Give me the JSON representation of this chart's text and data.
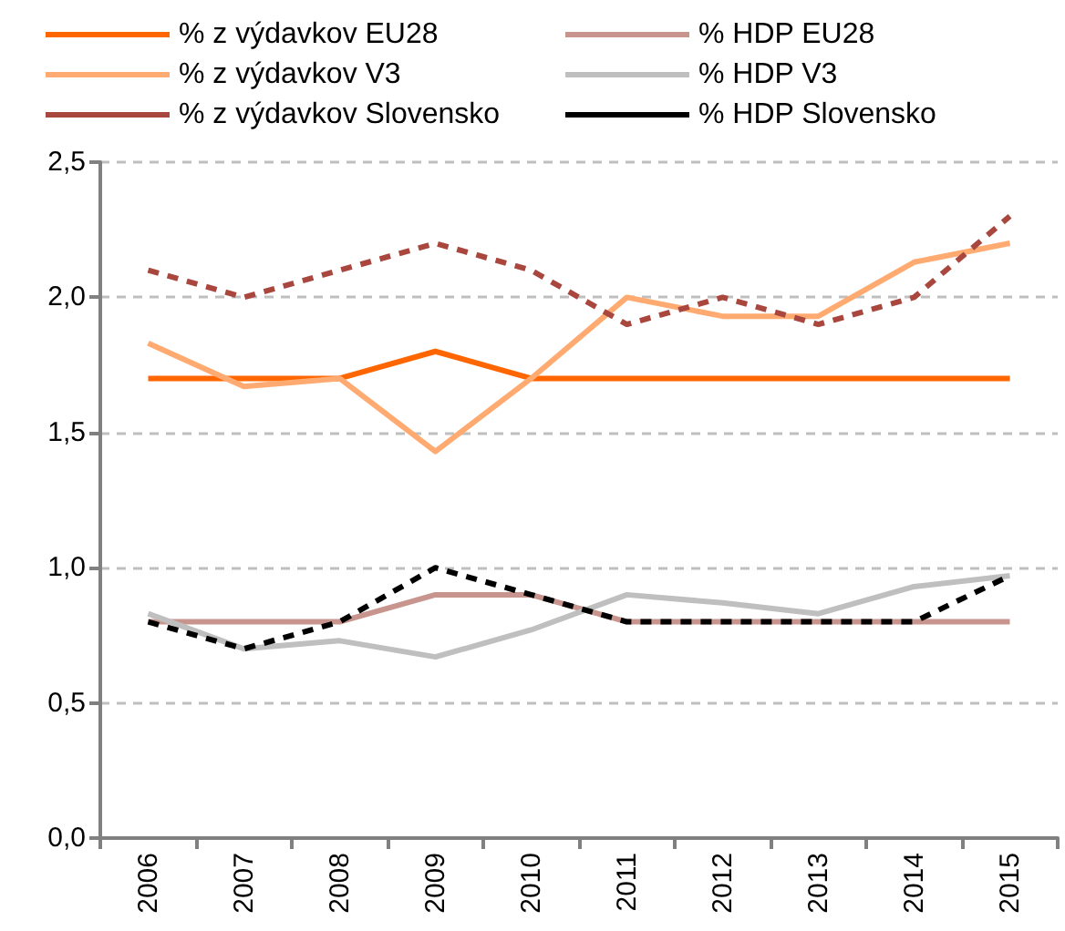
{
  "chart_data": {
    "type": "line",
    "categories": [
      "2006",
      "2007",
      "2008",
      "2009",
      "2010",
      "2011",
      "2012",
      "2013",
      "2014",
      "2015"
    ],
    "series": [
      {
        "name": "% z výdavkov EU28",
        "color": "#ff6600",
        "line_style": "solid",
        "values": [
          1.7,
          1.7,
          1.7,
          1.8,
          1.7,
          1.7,
          1.7,
          1.7,
          1.7,
          1.7
        ]
      },
      {
        "name": "% HDP EU28",
        "color": "#c8958e",
        "line_style": "solid",
        "values": [
          0.8,
          0.8,
          0.8,
          0.9,
          0.9,
          0.8,
          0.8,
          0.8,
          0.8,
          0.8
        ]
      },
      {
        "name": "% z výdavkov V3",
        "color": "#ffaa70",
        "line_style": "solid",
        "values": [
          1.83,
          1.67,
          1.7,
          1.43,
          1.7,
          2.0,
          1.93,
          1.93,
          2.13,
          2.2
        ]
      },
      {
        "name": "% HDP V3",
        "color": "#bfbfbf",
        "line_style": "solid",
        "values": [
          0.83,
          0.7,
          0.73,
          0.67,
          0.77,
          0.9,
          0.87,
          0.83,
          0.93,
          0.97
        ]
      },
      {
        "name": "% z výdavkov Slovensko",
        "color": "#a9473f",
        "line_style": "dashed",
        "values": [
          2.1,
          2.0,
          2.1,
          2.2,
          2.1,
          1.9,
          2.0,
          1.9,
          2.0,
          2.3
        ]
      },
      {
        "name": "% HDP Slovensko",
        "color": "#000000",
        "line_style": "dashed",
        "values": [
          0.8,
          0.7,
          0.8,
          1.0,
          0.9,
          0.8,
          0.8,
          0.8,
          0.8,
          0.97
        ]
      }
    ],
    "ylim": [
      0,
      2.5
    ],
    "yticks": [
      {
        "value": 0,
        "label": "0,0"
      },
      {
        "value": 0.5,
        "label": "0,5"
      },
      {
        "value": 1,
        "label": "1,0"
      },
      {
        "value": 1.5,
        "label": "1,5"
      },
      {
        "value": 2,
        "label": "2,0"
      },
      {
        "value": 2.5,
        "label": "2,5"
      }
    ],
    "grid": "y",
    "legend": "top",
    "marker": "none"
  }
}
